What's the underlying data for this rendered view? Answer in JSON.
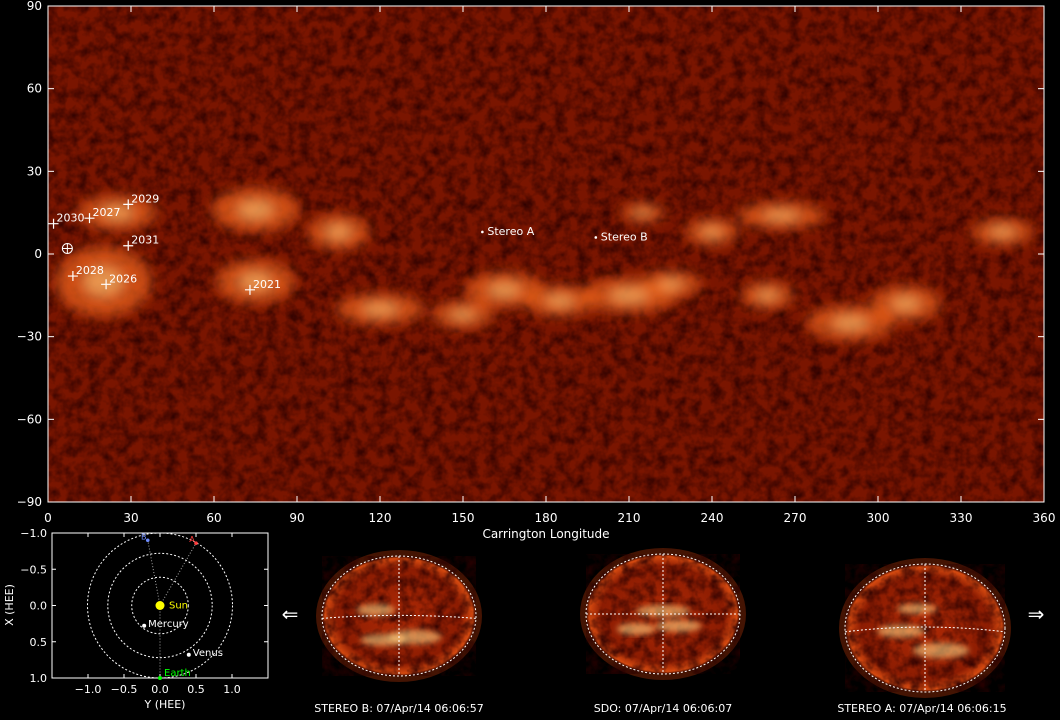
{
  "chart_data": [
    {
      "type": "scatter",
      "title": "",
      "xlabel": "Carrington Longitude",
      "ylabel": "",
      "xlim": [
        0,
        360
      ],
      "ylim": [
        -90,
        90
      ],
      "x_ticks": [
        0,
        30,
        60,
        90,
        120,
        150,
        180,
        210,
        240,
        270,
        300,
        330,
        360
      ],
      "y_ticks": [
        90,
        60,
        30,
        0,
        -30,
        -60,
        -90
      ],
      "y_tick_labels": [
        "90",
        "60",
        "30",
        "0",
        "−30",
        "−60",
        "−90"
      ],
      "background": "EUV Carrington synoptic map (304 Å style)",
      "active_regions": [
        {
          "label": "2030",
          "lon": 2,
          "lat": 11
        },
        {
          "label": "2027",
          "lon": 15,
          "lat": 13
        },
        {
          "label": "2029",
          "lon": 29,
          "lat": 18
        },
        {
          "label": "2031",
          "lon": 29,
          "lat": 3
        },
        {
          "label": "2028",
          "lon": 9,
          "lat": -8
        },
        {
          "label": "2026",
          "lon": 21,
          "lat": -11
        },
        {
          "label": "2021",
          "lon": 73,
          "lat": -13
        }
      ],
      "earth_marker": {
        "lon": 7,
        "lat": 2
      },
      "spacecraft": [
        {
          "label": "Stereo A",
          "lon": 157,
          "lat": 8
        },
        {
          "label": "Stereo B",
          "lon": 198,
          "lat": 6
        }
      ]
    },
    {
      "type": "scatter",
      "title": "",
      "xlabel": "Y (HEE)",
      "ylabel": "X (HEE)",
      "xlim": [
        -1.5,
        1.5
      ],
      "ylim": [
        -1.0,
        1.0
      ],
      "x_ticks": [
        -1.0,
        -0.5,
        0.0,
        0.5,
        1.0
      ],
      "x_tick_labels": [
        "−1.0",
        "−0.5",
        "0.0",
        "0.5",
        "1.0"
      ],
      "y_ticks": [
        -1.0,
        -0.5,
        0.0,
        0.5,
        1.0
      ],
      "y_tick_labels": [
        "−1.0",
        "−0.5",
        "0.0",
        "0.5",
        "1.0"
      ],
      "orbits_au": [
        0.39,
        0.72,
        1.0
      ],
      "bodies": [
        {
          "label": "Sun",
          "x": 0.0,
          "y": 0.0,
          "color": "#ffff00"
        },
        {
          "label": "Mercury",
          "x": 0.28,
          "y": -0.22,
          "color": "#ffffff"
        },
        {
          "label": "Venus",
          "x": 0.68,
          "y": 0.4,
          "color": "#ffffff"
        },
        {
          "label": "Earth",
          "x": 1.0,
          "y": 0.0,
          "color": "#00ff00"
        }
      ],
      "spacecraft": [
        {
          "label": "B",
          "x": -0.9,
          "y": -0.17,
          "color": "#6e8cff"
        },
        {
          "label": "A",
          "x": -0.86,
          "y": 0.5,
          "color": "#ff3c3c"
        }
      ]
    }
  ],
  "discs": [
    {
      "label": "STEREO B: 07/Apr/14 06:06:57"
    },
    {
      "label": "SDO: 07/Apr/14 06:06:07"
    },
    {
      "label": "STEREO A: 07/Apr/14 06:06:15"
    }
  ],
  "nav": {
    "prev": "⇐",
    "next": "⇒"
  },
  "colors": {
    "map_base": "#7a1500",
    "bright": "#ffd080",
    "axis": "#ffffff"
  }
}
